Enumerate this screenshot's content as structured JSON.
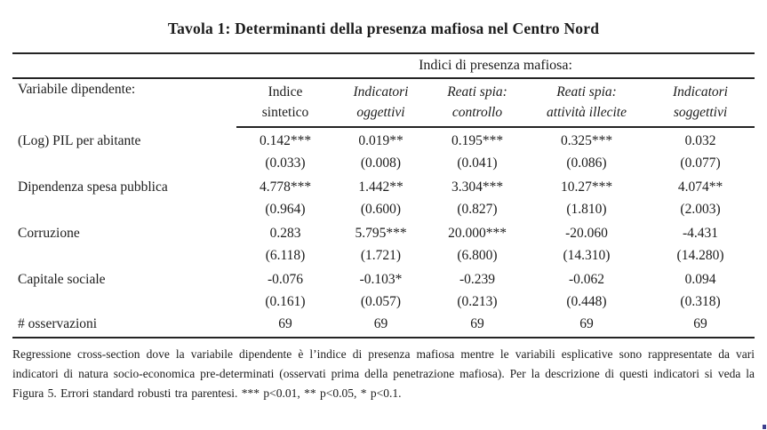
{
  "title": "Tavola 1: Determinanti della presenza mafiosa nel Centro Nord",
  "table": {
    "span_header": "Indici di presenza mafiosa:",
    "row_header_label": "Variabile dipendente:",
    "columns": [
      {
        "line1": "Indice",
        "line2": "sintetico"
      },
      {
        "line1": "Indicatori",
        "line2": "oggettivi"
      },
      {
        "line1": "Reati spia:",
        "line2": "controllo"
      },
      {
        "line1": "Reati spia:",
        "line2": "attività illecite"
      },
      {
        "line1": "Indicatori",
        "line2": "soggettivi"
      }
    ],
    "rows": [
      {
        "label": "(Log) PIL per abitante",
        "coefficients": [
          "0.142***",
          "0.019**",
          "0.195***",
          "0.325***",
          "0.032"
        ],
        "std_errors": [
          "(0.033)",
          "(0.008)",
          "(0.041)",
          "(0.086)",
          "(0.077)"
        ]
      },
      {
        "label": "Dipendenza spesa pubblica",
        "coefficients": [
          "4.778***",
          "1.442**",
          "3.304***",
          "10.27***",
          "4.074**"
        ],
        "std_errors": [
          "(0.964)",
          "(0.600)",
          "(0.827)",
          "(1.810)",
          "(2.003)"
        ]
      },
      {
        "label": "Corruzione",
        "coefficients": [
          "0.283",
          "5.795***",
          "20.000***",
          "-20.060",
          "-4.431"
        ],
        "std_errors": [
          "(6.118)",
          "(1.721)",
          "(6.800)",
          "(14.310)",
          "(14.280)"
        ]
      },
      {
        "label": "Capitale sociale",
        "coefficients": [
          "-0.076",
          "-0.103*",
          "-0.239",
          "-0.062",
          "0.094"
        ],
        "std_errors": [
          "(0.161)",
          "(0.057)",
          "(0.213)",
          "(0.448)",
          "(0.318)"
        ]
      }
    ],
    "observations": {
      "label": "# osservazioni",
      "values": [
        "69",
        "69",
        "69",
        "69",
        "69"
      ]
    }
  },
  "footnote": "Regressione cross-section dove la variabile dipendente è l’indice di presenza mafiosa mentre le variabili esplicative sono rappresentate da vari indicatori di natura socio-economica pre-determinati (osservati prima della penetrazione mafiosa). Per la descrizione di questi indicatori si veda la Figura 5. Errori standard robusti tra parentesi. *** p<0.01, ** p<0.05, * p<0.1.",
  "colors": {
    "text": "#1c1c1c",
    "rule": "#242424",
    "background": "#ffffff"
  }
}
